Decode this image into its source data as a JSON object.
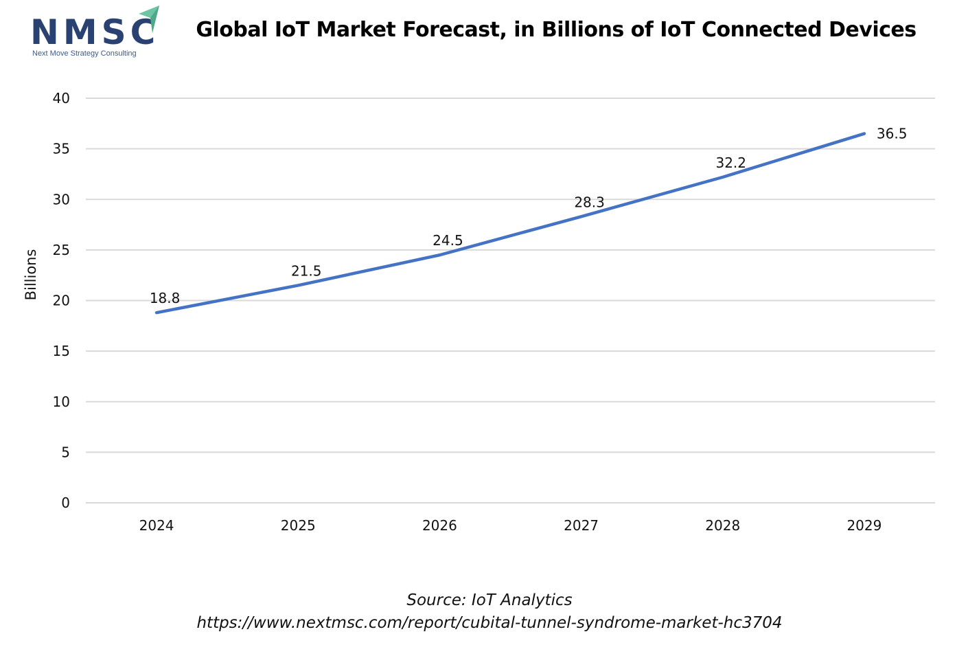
{
  "logo": {
    "name": "NMSC",
    "tagline": "Next Move Strategy Consulting",
    "brand_color": "#2a4272",
    "accent_color": "#6cc6a4"
  },
  "source": {
    "line1": "Source: IoT Analytics",
    "line2": "https://www.nextmsc.com/report/cubital-tunnel-syndrome-market-hc3704"
  },
  "chart_data": {
    "type": "line",
    "title": "Global IoT Market Forecast, in Billions of IoT Connected Devices",
    "xlabel": "",
    "ylabel": "Billions",
    "categories": [
      "2024",
      "2025",
      "2026",
      "2027",
      "2028",
      "2029"
    ],
    "series": [
      {
        "name": "IoT Connected Devices",
        "values": [
          18.8,
          21.5,
          24.5,
          28.3,
          32.2,
          36.5
        ],
        "color": "#4472c4",
        "data_labels": [
          "18.8",
          "21.5",
          "24.5",
          "28.3",
          "32.2",
          "36.5"
        ]
      }
    ],
    "ylim": [
      0,
      40
    ],
    "yticks": [
      0,
      5,
      10,
      15,
      20,
      25,
      30,
      35,
      40
    ],
    "grid": true,
    "gridline_color": "#d9d9d9",
    "legend": "none"
  }
}
